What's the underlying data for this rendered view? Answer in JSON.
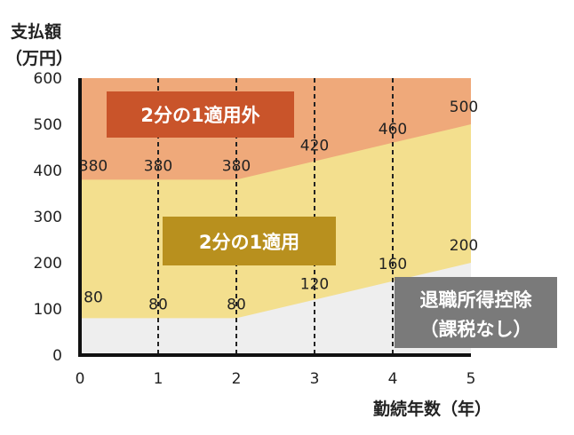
{
  "chart_data": {
    "type": "area",
    "ylabel": [
      "支払額",
      "（万円）"
    ],
    "xlabel": "勤続年数（年）",
    "x": [
      0,
      1,
      2,
      3,
      4,
      5
    ],
    "xlim": [
      0,
      5
    ],
    "ylim": [
      0,
      600
    ],
    "yticks": [
      0,
      100,
      200,
      300,
      400,
      500,
      600
    ],
    "xticks": [
      0,
      1,
      2,
      3,
      4,
      5
    ],
    "series": [
      {
        "name": "退職所得控除（課税なし）",
        "values": [
          80,
          80,
          80,
          120,
          160,
          200
        ],
        "color": "#eeeeee"
      },
      {
        "name": "2分の1適用",
        "values": [
          380,
          380,
          380,
          420,
          460,
          500
        ],
        "color": "#f3df8e"
      },
      {
        "name": "2分の1適用外",
        "values": [
          600,
          600,
          600,
          600,
          600,
          600
        ],
        "color": "#efa97a"
      }
    ],
    "lower_labels": [
      "80",
      "80",
      "80",
      "120",
      "160",
      "200"
    ],
    "upper_labels": [
      "380",
      "380",
      "380",
      "420",
      "460",
      "500"
    ],
    "grid": "vertical dashed at x=1..4",
    "region_labels": {
      "outside": "2分の1適用外",
      "applied": "2分の1適用",
      "deduction_line1": "退職所得控除",
      "deduction_line2": "（課税なし）"
    },
    "region_label_colors": {
      "outside": "#c9542a",
      "applied": "#b8901e",
      "deduction": "#7a7a7a"
    }
  }
}
